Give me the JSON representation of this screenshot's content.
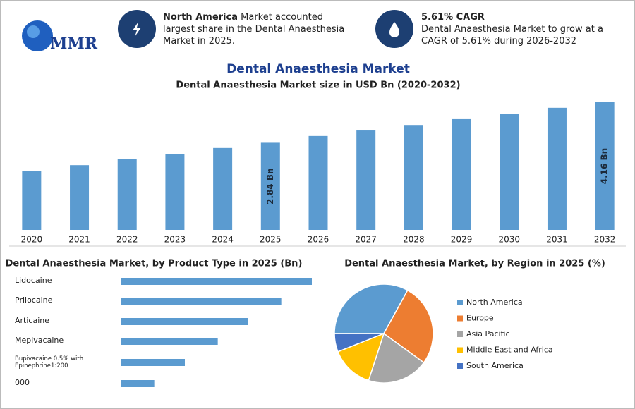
{
  "header": {
    "logo": "MMR",
    "info": [
      {
        "highlight": "North America",
        "text": "Market accounted largest share in the Dental Anaesthesia Market in 2025."
      },
      {
        "highlight": "5.61% CAGR",
        "text": "Dental Anaesthesia Market to grow at a CAGR of 5.61% during 2026-2032"
      }
    ]
  },
  "chart_data": [
    {
      "type": "bar",
      "title": "Dental Anaesthesia Market",
      "subtitle": "Dental Anaesthesia Market size in USD Bn (2020-2032)",
      "categories": [
        "2020",
        "2021",
        "2022",
        "2023",
        "2024",
        "2025",
        "2026",
        "2027",
        "2028",
        "2029",
        "2030",
        "2031",
        "2032"
      ],
      "values": [
        1.93,
        2.11,
        2.3,
        2.48,
        2.67,
        2.84,
        3.06,
        3.24,
        3.42,
        3.61,
        3.79,
        3.98,
        4.16
      ],
      "value_labels": [
        null,
        null,
        null,
        null,
        null,
        "2.84 Bn",
        null,
        null,
        null,
        null,
        null,
        null,
        "4.16 Bn"
      ],
      "color": "#5b9bd0"
    },
    {
      "type": "hbar",
      "title": "Dental Anaesthesia Market, by Product Type in 2025 (Bn)",
      "categories": [
        "Lidocaine",
        "Prilocaine",
        "Articaine",
        "Mepivacaine",
        "Bupivacaine 0.5% with Epinephrine1:200",
        "000"
      ],
      "values": [
        0.81,
        0.68,
        0.54,
        0.41,
        0.27,
        0.14
      ],
      "color": "#5b9bd0"
    },
    {
      "type": "pie",
      "title": "Dental Anaesthesia Market, by Region in 2025 (%)",
      "categories": [
        "North America",
        "Europe",
        "Asia Pacific",
        "Middle East and Africa",
        "South America"
      ],
      "values": [
        33,
        27,
        20,
        14,
        6
      ],
      "colors": [
        "#5b9bd0",
        "#ed7d31",
        "#a5a5a5",
        "#ffc000",
        "#4472c4"
      ]
    }
  ]
}
